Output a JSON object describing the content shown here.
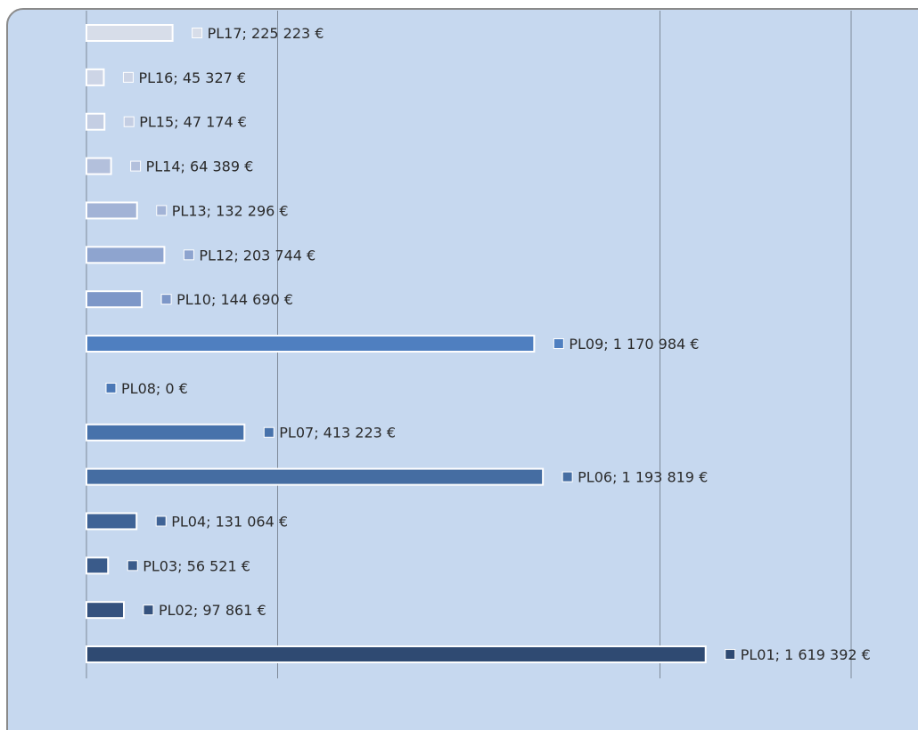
{
  "chart_data": {
    "type": "bar",
    "orientation": "horizontal",
    "categories": [
      "PL17",
      "PL16",
      "PL15",
      "PL14",
      "PL13",
      "PL12",
      "PL10",
      "PL09",
      "PL08",
      "PL07",
      "PL06",
      "PL04",
      "PL03",
      "PL02",
      "PL01"
    ],
    "values": [
      225223,
      45327,
      47174,
      64389,
      132296,
      203744,
      144690,
      1170984,
      0,
      413223,
      1193819,
      131064,
      56521,
      97861,
      1619392
    ],
    "label_separator": "; ",
    "value_labels": [
      "225 223 €",
      "45 327 €",
      "47 174 €",
      "64 389 €",
      "132 296 €",
      "203 744 €",
      "144 690 €",
      "1 170 984 €",
      "0 €",
      "413 223 €",
      "1 193 819 €",
      "131 064 €",
      "56 521 €",
      "97 861 €",
      "1 619 392 €"
    ],
    "colors": [
      "#d7dde9",
      "#cdd5e6",
      "#c4cee3",
      "#b3c0dc",
      "#a2b3d6",
      "#8ea4cf",
      "#7d97c8",
      "#4f7fc0",
      "#4b78b6",
      "#4772ab",
      "#456da2",
      "#3f6396",
      "#3a5b8a",
      "#35527e",
      "#2f4a72"
    ],
    "xlim": [
      0,
      2000000
    ],
    "xticks": [
      0,
      500000,
      1500000,
      2000000
    ],
    "grid": true
  }
}
